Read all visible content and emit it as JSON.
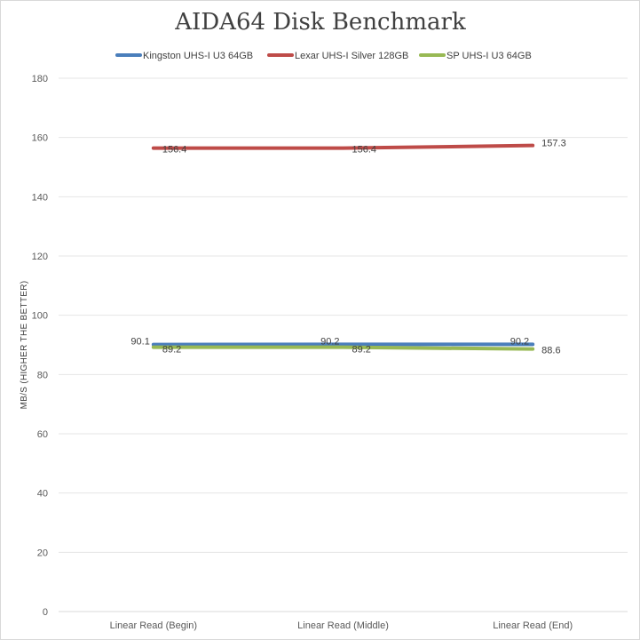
{
  "chart_data": {
    "type": "line",
    "title": "AIDA64 Disk Benchmark",
    "xlabel": "",
    "ylabel": "MB/S (HIGHER THE BETTER)",
    "categories": [
      "Linear Read (Begin)",
      "Linear Read (Middle)",
      "Linear Read (End)"
    ],
    "ylim": [
      0,
      180
    ],
    "yticks": [
      0,
      20,
      40,
      60,
      80,
      100,
      120,
      140,
      160,
      180
    ],
    "grid": true,
    "legend_position": "top",
    "series": [
      {
        "name": "Kingston UHS-I U3 64GB",
        "color": "#4a7ebb",
        "values": [
          90.1,
          90.2,
          90.2
        ],
        "labels": [
          "90.1",
          "90.2",
          "90.2"
        ]
      },
      {
        "name": "Lexar UHS-I Silver 128GB",
        "color": "#be4b48",
        "values": [
          156.4,
          156.4,
          157.3
        ],
        "labels": [
          "156.4",
          "156.4",
          "157.3"
        ]
      },
      {
        "name": "SP UHS-I U3 64GB",
        "color": "#98b954",
        "values": [
          89.2,
          89.2,
          88.6
        ],
        "labels": [
          "89.2",
          "89.2",
          "88.6"
        ]
      }
    ]
  }
}
